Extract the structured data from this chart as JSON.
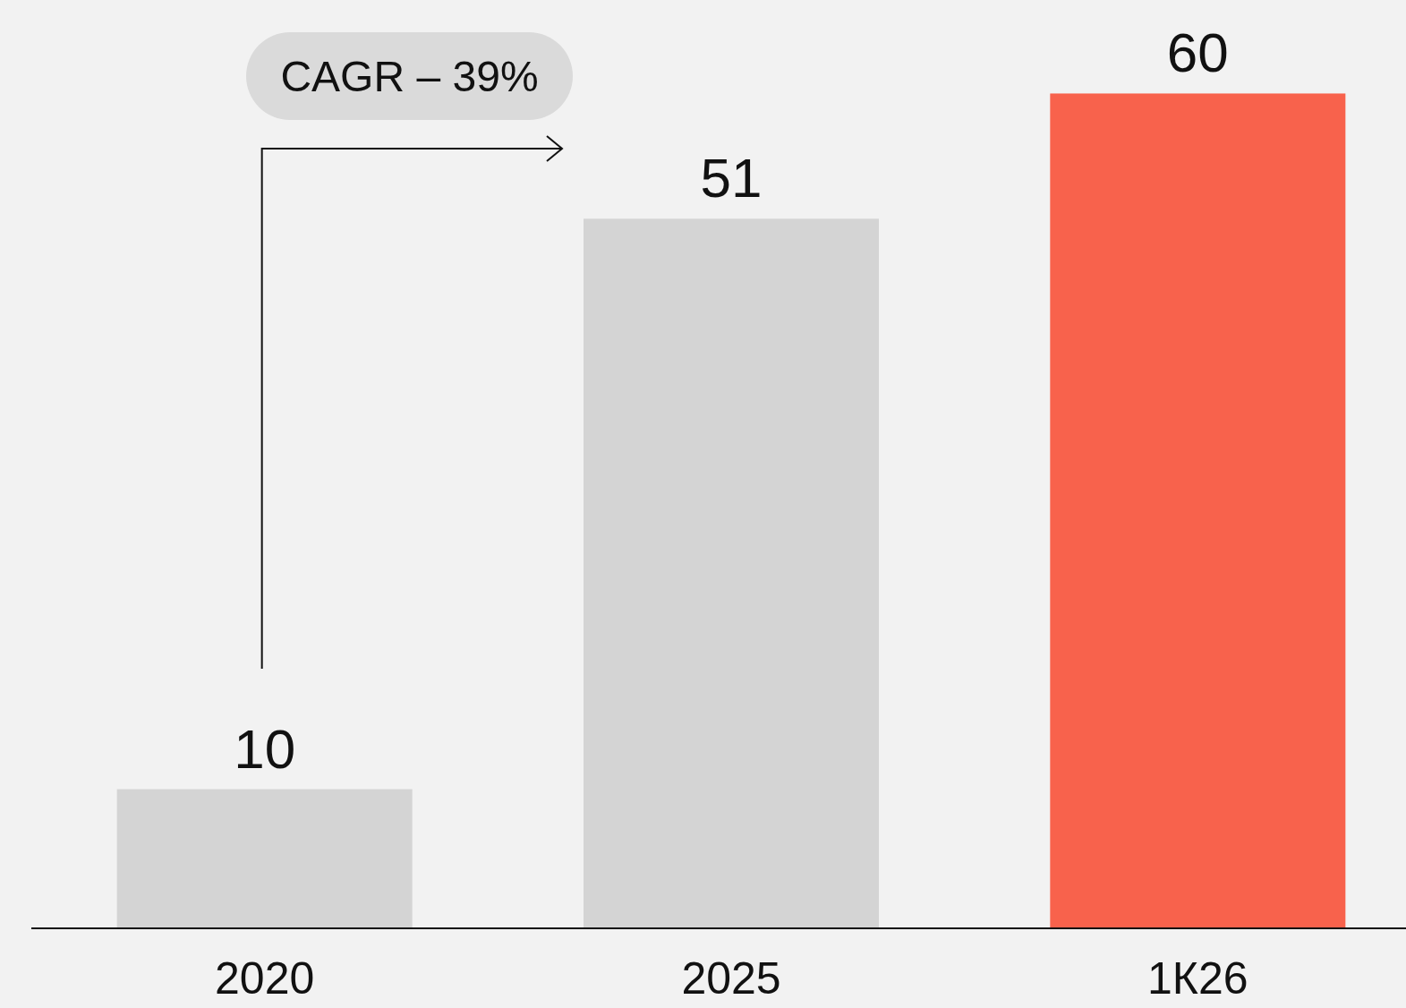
{
  "chart_data": {
    "type": "bar",
    "categories": [
      "2020",
      "2025",
      "1К26"
    ],
    "values": [
      10,
      51,
      60
    ],
    "colors": [
      "#d4d4d4",
      "#d4d4d4",
      "#f8624c"
    ],
    "data_labels": true,
    "annotations": [
      "CAGR – 39%"
    ]
  }
}
